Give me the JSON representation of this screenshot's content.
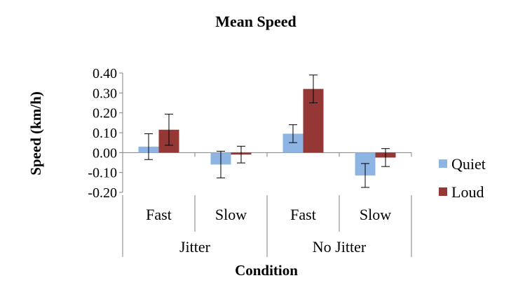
{
  "chart_data": {
    "type": "bar",
    "title": "Mean Speed",
    "xlabel": "Condition",
    "ylabel": "Speed (km/h)",
    "ylim": [
      -0.2,
      0.4
    ],
    "yticks": [
      "0.40",
      "0.30",
      "0.20",
      "0.10",
      "0.00",
      "-0.10",
      "-0.20"
    ],
    "groups": [
      "Jitter",
      "No Jitter"
    ],
    "categories": [
      "Fast",
      "Slow",
      "Fast",
      "Slow"
    ],
    "series": [
      {
        "name": "Quiet",
        "color": "#8DB4E2",
        "values": [
          0.03,
          -0.06,
          0.095,
          -0.115
        ],
        "errors": [
          0.065,
          0.067,
          0.045,
          0.06
        ]
      },
      {
        "name": "Loud",
        "color": "#953735",
        "values": [
          0.115,
          -0.01,
          0.32,
          -0.025
        ],
        "errors": [
          0.078,
          0.042,
          0.07,
          0.045
        ]
      }
    ],
    "legend_position": "right",
    "grid": false
  }
}
